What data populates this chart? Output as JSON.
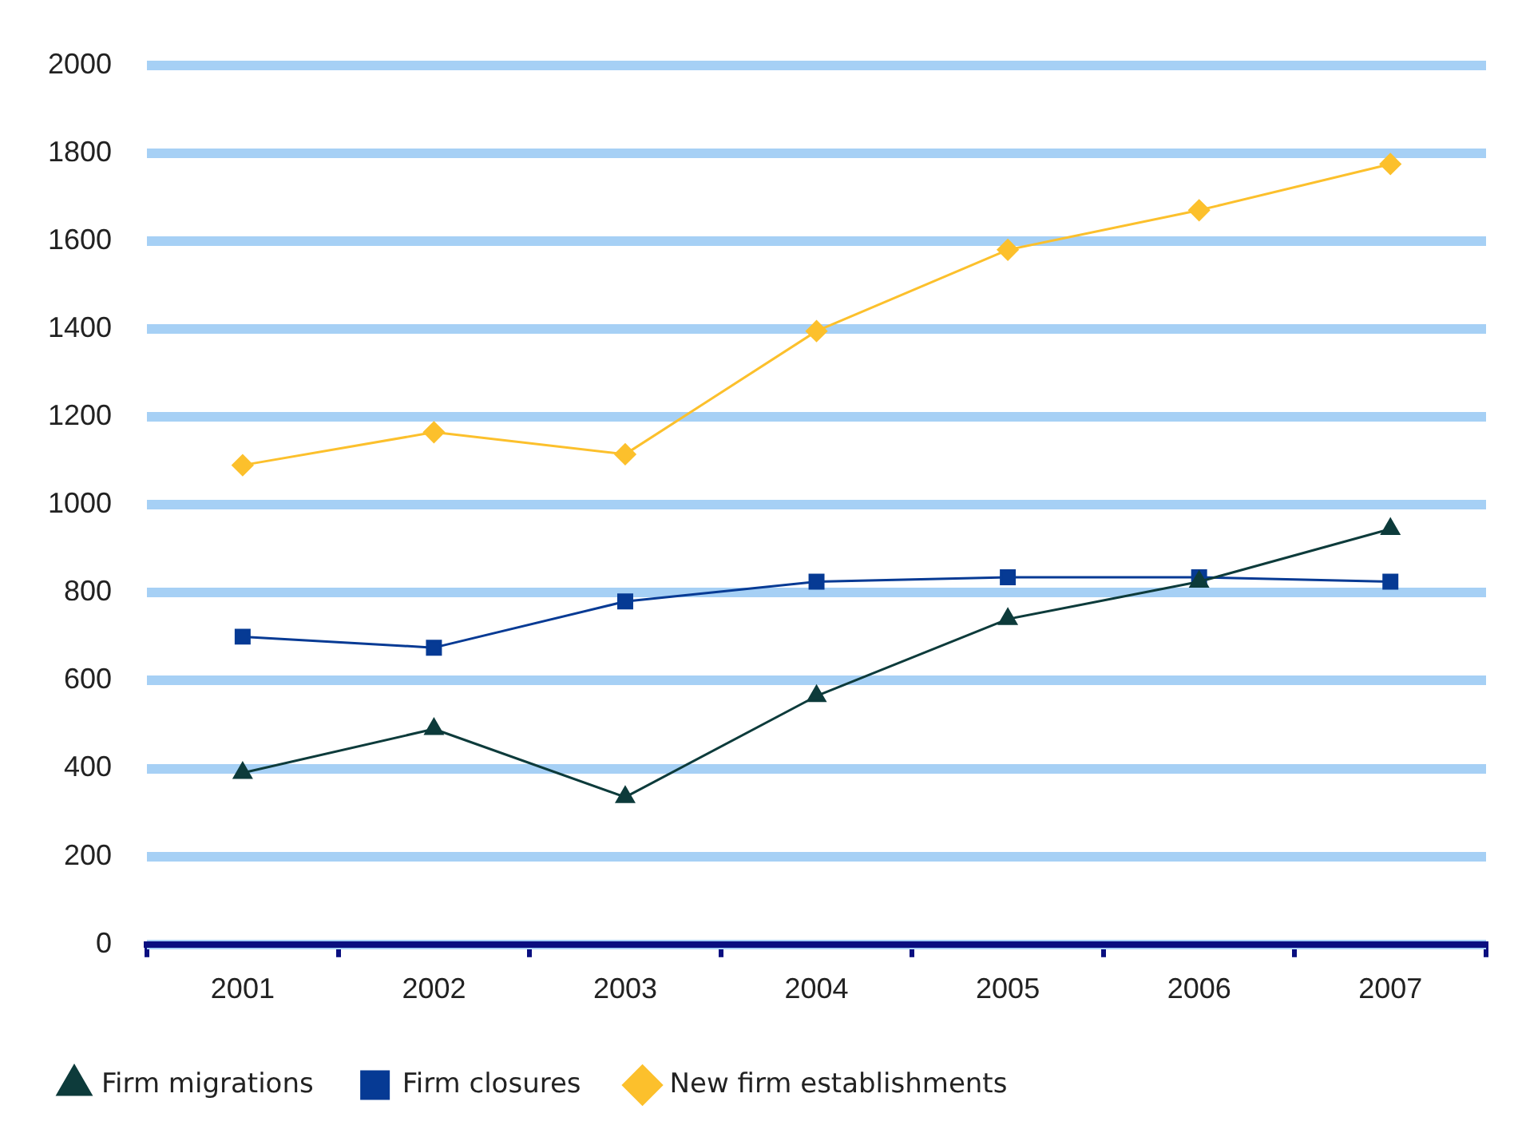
{
  "chart_data": {
    "type": "line",
    "categories": [
      "2001",
      "2002",
      "2003",
      "2004",
      "2005",
      "2006",
      "2007"
    ],
    "series": [
      {
        "name": "New firm establishments",
        "color": "#fcc02c",
        "marker": "diamond",
        "values": [
          1090,
          1165,
          1115,
          1395,
          1580,
          1670,
          1775
        ]
      },
      {
        "name": "Firm closures",
        "color": "#063a94",
        "marker": "square",
        "values": [
          700,
          675,
          780,
          825,
          835,
          835,
          825
        ]
      },
      {
        "name": "Firm migrations",
        "color": "#0d3b3b",
        "marker": "triangle",
        "values": [
          390,
          490,
          335,
          565,
          740,
          825,
          945
        ]
      }
    ],
    "ylim": [
      0,
      2000
    ],
    "yticks": [
      0,
      200,
      400,
      600,
      800,
      1000,
      1200,
      1400,
      1600,
      1800,
      2000
    ],
    "grid": "y",
    "legend": "bottom",
    "line_style": "solid"
  }
}
